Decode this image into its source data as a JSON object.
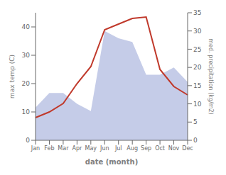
{
  "chart_data": {
    "type": "line",
    "xlabel": "date (month)",
    "ylabel": "max temp (C)",
    "y2label": "med. precipitation (kg/m2)",
    "categories": [
      "Jan",
      "Feb",
      "Mar",
      "Apr",
      "May",
      "Jun",
      "Jul",
      "Aug",
      "Sep",
      "Oct",
      "Nov",
      "Dec"
    ],
    "series": [
      {
        "type": "area",
        "axis": "y2",
        "color": "#c5cce8",
        "values": [
          9.0,
          13.0,
          13.0,
          10.0,
          8.0,
          30.0,
          28.0,
          27.0,
          18.0,
          18.0,
          20.0,
          16.0
        ]
      },
      {
        "type": "line",
        "axis": "y",
        "color": "#c0392b",
        "values": [
          8.0,
          10.0,
          13.0,
          20.0,
          26.0,
          39.0,
          41.0,
          43.0,
          43.5,
          25.0,
          19.0,
          16.0
        ]
      }
    ],
    "ylim": [
      0,
      45
    ],
    "yticks": [
      0,
      10,
      20,
      30,
      40
    ],
    "y2lim": [
      0,
      35
    ],
    "y2ticks": [
      0,
      5,
      10,
      15,
      20,
      25,
      30,
      35
    ]
  }
}
